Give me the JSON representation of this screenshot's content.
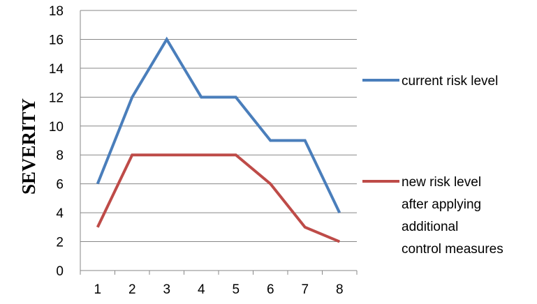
{
  "chart_data": {
    "type": "line",
    "title": "",
    "xlabel": "",
    "ylabel": "SEVERITY",
    "categories": [
      "1",
      "2",
      "3",
      "4",
      "5",
      "6",
      "7",
      "8"
    ],
    "ylim": [
      0,
      18
    ],
    "yticks": [
      0,
      2,
      4,
      6,
      8,
      10,
      12,
      14,
      16,
      18
    ],
    "grid": "horizontal",
    "legend_position": "right",
    "series": [
      {
        "name": "current risk level",
        "color": "#4a7ebb",
        "values": [
          6,
          12,
          16,
          12,
          12,
          9,
          9,
          4
        ]
      },
      {
        "name": "new risk level after applying additional control measures",
        "legend_lines": [
          "new risk level",
          "after applying",
          "additional",
          "control measures"
        ],
        "color": "#be4b48",
        "values": [
          3,
          8,
          8,
          8,
          8,
          6,
          3,
          2
        ]
      }
    ]
  }
}
